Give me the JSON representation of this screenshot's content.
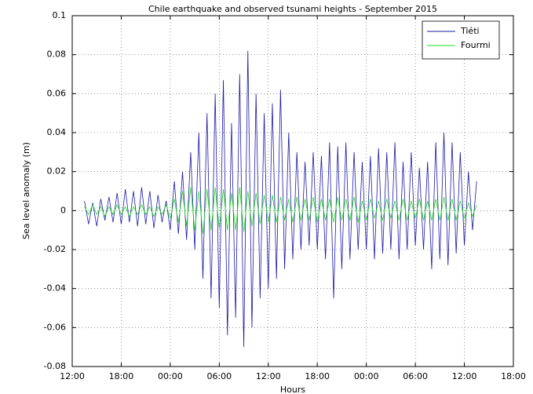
{
  "chart_data": {
    "type": "line",
    "title": "Chile earthquake and observed tsunami heights - September 2015",
    "xlabel": "Hours",
    "ylabel": "Sea level anomaly (m)",
    "x": [
      1.5,
      2,
      2.5,
      3,
      3.5,
      4,
      4.5,
      5,
      5.5,
      6,
      6.5,
      7,
      7.5,
      8,
      8.5,
      9,
      9.5,
      10,
      10.5,
      11,
      11.5,
      12,
      12.5,
      13,
      13.5,
      14,
      14.5,
      15,
      15.5,
      16,
      16.5,
      17,
      17.5,
      18,
      18.5,
      19,
      19.5,
      20,
      20.5,
      21,
      21.5,
      22,
      22.5,
      23,
      23.5,
      24,
      24.5,
      25,
      25.5,
      26,
      26.5,
      27,
      27.5,
      28,
      28.5,
      29,
      29.5,
      30,
      30.5,
      31,
      31.5,
      32,
      32.5,
      33,
      33.5,
      34,
      34.5,
      35,
      35.5,
      36,
      36.5,
      37,
      37.5,
      38,
      38.5,
      39,
      39.5,
      40,
      40.5,
      41,
      41.5,
      42,
      42.5,
      43,
      43.5,
      44,
      44.5,
      45,
      45.5,
      46,
      46.5,
      47,
      47.5,
      48,
      48.5,
      49,
      49.5
    ],
    "series": [
      {
        "name": "Tiéti",
        "color": "#1a1aa6",
        "values": [
          0.005,
          -0.007,
          0.004,
          -0.008,
          0.006,
          -0.005,
          0.007,
          -0.006,
          0.009,
          -0.007,
          0.011,
          -0.006,
          0.01,
          -0.008,
          0.012,
          -0.007,
          0.01,
          -0.009,
          0.008,
          -0.006,
          0.005,
          -0.01,
          0.015,
          -0.012,
          0.02,
          -0.015,
          0.03,
          -0.02,
          0.04,
          -0.035,
          0.05,
          -0.045,
          0.06,
          -0.05,
          0.067,
          -0.064,
          0.045,
          -0.055,
          0.07,
          -0.07,
          0.082,
          -0.06,
          0.06,
          -0.045,
          0.05,
          -0.04,
          0.055,
          -0.035,
          0.062,
          -0.03,
          0.04,
          -0.025,
          0.03,
          -0.02,
          0.025,
          -0.018,
          0.03,
          -0.02,
          0.028,
          -0.025,
          0.035,
          -0.045,
          0.033,
          -0.03,
          0.035,
          -0.025,
          0.03,
          -0.02,
          0.025,
          -0.02,
          0.028,
          -0.025,
          0.032,
          -0.022,
          0.03,
          -0.02,
          0.035,
          -0.025,
          0.025,
          -0.02,
          0.03,
          -0.018,
          0.022,
          -0.02,
          0.025,
          -0.03,
          0.035,
          -0.025,
          0.04,
          -0.028,
          0.035,
          -0.022,
          0.03,
          -0.018,
          0.02,
          -0.01,
          0.015
        ]
      },
      {
        "name": "Fourmi",
        "color": "#22dd22",
        "values": [
          0.002,
          -0.002,
          0.003,
          -0.002,
          0.002,
          -0.003,
          0.002,
          -0.002,
          0.003,
          -0.002,
          0.002,
          -0.003,
          0.002,
          -0.002,
          0.003,
          -0.002,
          0.002,
          -0.003,
          0.002,
          -0.002,
          0.003,
          -0.004,
          0.006,
          -0.006,
          0.01,
          -0.008,
          0.012,
          -0.01,
          0.01,
          -0.012,
          0.011,
          -0.01,
          0.012,
          -0.009,
          0.011,
          -0.01,
          0.009,
          -0.01,
          0.012,
          -0.011,
          0.01,
          -0.008,
          0.009,
          -0.007,
          0.008,
          -0.006,
          0.008,
          -0.006,
          0.007,
          -0.005,
          0.006,
          -0.006,
          0.007,
          -0.005,
          0.006,
          -0.005,
          0.007,
          -0.006,
          0.006,
          -0.005,
          0.006,
          -0.006,
          0.007,
          -0.005,
          0.006,
          -0.005,
          0.007,
          -0.006,
          0.005,
          -0.005,
          0.006,
          -0.004,
          0.005,
          -0.005,
          0.006,
          -0.004,
          0.005,
          -0.005,
          0.006,
          -0.005,
          0.005,
          -0.004,
          0.006,
          -0.005,
          0.005,
          -0.005,
          0.006,
          -0.005,
          0.007,
          -0.005,
          0.006,
          -0.005,
          0.005,
          -0.004,
          0.004,
          -0.003,
          0.003
        ]
      }
    ],
    "xlim": [
      0,
      54
    ],
    "xticks": [
      {
        "value": 0,
        "label": "12:00"
      },
      {
        "value": 6,
        "label": "18:00"
      },
      {
        "value": 12,
        "label": "00:00"
      },
      {
        "value": 18,
        "label": "06:00"
      },
      {
        "value": 24,
        "label": "12:00"
      },
      {
        "value": 30,
        "label": "18:00"
      },
      {
        "value": 36,
        "label": "00:00"
      },
      {
        "value": 42,
        "label": "06:00"
      },
      {
        "value": 48,
        "label": "12:00"
      },
      {
        "value": 54,
        "label": "18:00"
      }
    ],
    "ylim": [
      -0.08,
      0.1
    ],
    "yticks": [
      -0.08,
      -0.06,
      -0.04,
      -0.02,
      0,
      0.02,
      0.04,
      0.06,
      0.08,
      0.1
    ],
    "grid": true,
    "legend": "northeast"
  }
}
